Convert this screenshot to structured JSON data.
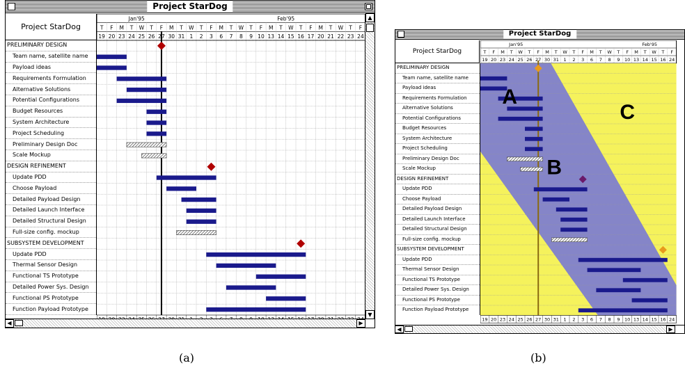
{
  "window_title": "Project StarDog",
  "project_label": "Project StarDog",
  "months": [
    {
      "label": "Jan'95",
      "start": 0,
      "span": 10
    },
    {
      "label": "Feb'95",
      "start": 10,
      "span": 20
    }
  ],
  "weekdays": [
    "T",
    "F",
    "M",
    "T",
    "W",
    "T",
    "F",
    "M",
    "T",
    "W",
    "T",
    "F",
    "M",
    "T",
    "W",
    "T",
    "F",
    "M",
    "T",
    "W",
    "T",
    "F",
    "M",
    "T",
    "W",
    "T",
    "F",
    "M",
    "T",
    "F"
  ],
  "dates": [
    "19",
    "20",
    "23",
    "24",
    "25",
    "26",
    "27",
    "30",
    "31",
    "1",
    "2",
    "3",
    "6",
    "7",
    "8",
    "9",
    "10",
    "13",
    "14",
    "15",
    "16",
    "17",
    "20",
    "21",
    "22",
    "23",
    "24"
  ],
  "dates_b": [
    "19",
    "20",
    "23",
    "24",
    "25",
    "26",
    "27",
    "30",
    "31",
    "1",
    "2",
    "3",
    "6",
    "7",
    "8",
    "9",
    "10",
    "13",
    "14",
    "15",
    "16",
    "24"
  ],
  "rows": [
    {
      "label": "PRELIMINARY DESIGN",
      "kind": "section"
    },
    {
      "label": "Team name, satellite name",
      "kind": "task"
    },
    {
      "label": "Payload ideas",
      "kind": "task"
    },
    {
      "label": "Requirements Formulation",
      "kind": "task"
    },
    {
      "label": "Alternative Solutions",
      "kind": "task"
    },
    {
      "label": "Potential Configurations",
      "kind": "task"
    },
    {
      "label": "Budget Resources",
      "kind": "task"
    },
    {
      "label": "System Architecture",
      "kind": "task"
    },
    {
      "label": "Project Scheduling",
      "kind": "task"
    },
    {
      "label": "Preliminary Design Doc",
      "kind": "task"
    },
    {
      "label": "Scale Mockup",
      "kind": "task"
    },
    {
      "label": "DESIGN REFINEMENT",
      "kind": "section"
    },
    {
      "label": "Update PDD",
      "kind": "task"
    },
    {
      "label": "Choose Payload",
      "kind": "task"
    },
    {
      "label": "Detailed Payload Design",
      "kind": "task"
    },
    {
      "label": "Detailed Launch Interface",
      "kind": "task"
    },
    {
      "label": "Detailed Structural Design",
      "kind": "task"
    },
    {
      "label": "Full-size config. mockup",
      "kind": "task"
    },
    {
      "label": "SUBSYSTEM DEVELOPMENT",
      "kind": "section"
    },
    {
      "label": "Update PDD",
      "kind": "task"
    },
    {
      "label": "Thermal Sensor Design",
      "kind": "task"
    },
    {
      "label": "Functional TS Prototype",
      "kind": "task"
    },
    {
      "label": "Detailed Power Sys. Design",
      "kind": "task"
    },
    {
      "label": "Functional PS Prototype",
      "kind": "task"
    },
    {
      "label": "Function Payload Prototype",
      "kind": "task"
    }
  ],
  "bars": [
    {
      "row": 1,
      "start": 0,
      "end": 3,
      "style": "solid"
    },
    {
      "row": 2,
      "start": 0,
      "end": 3,
      "style": "solid"
    },
    {
      "row": 3,
      "start": 2,
      "end": 7,
      "style": "solid"
    },
    {
      "row": 4,
      "start": 3,
      "end": 7,
      "style": "solid"
    },
    {
      "row": 5,
      "start": 2,
      "end": 7,
      "style": "solid"
    },
    {
      "row": 6,
      "start": 5,
      "end": 7,
      "style": "solid"
    },
    {
      "row": 7,
      "start": 5,
      "end": 7,
      "style": "solid"
    },
    {
      "row": 8,
      "start": 5,
      "end": 7,
      "style": "solid"
    },
    {
      "row": 9,
      "start": 3,
      "end": 7,
      "style": "hatched"
    },
    {
      "row": 10,
      "start": 4.5,
      "end": 7,
      "style": "hatched"
    },
    {
      "row": 12,
      "start": 6,
      "end": 12,
      "style": "solid"
    },
    {
      "row": 13,
      "start": 7,
      "end": 10,
      "style": "solid"
    },
    {
      "row": 14,
      "start": 8.5,
      "end": 12,
      "style": "solid"
    },
    {
      "row": 15,
      "start": 9,
      "end": 12,
      "style": "solid"
    },
    {
      "row": 16,
      "start": 9,
      "end": 12,
      "style": "solid"
    },
    {
      "row": 17,
      "start": 8,
      "end": 12,
      "style": "hatched"
    },
    {
      "row": 19,
      "start": 11,
      "end": 21,
      "style": "solid"
    },
    {
      "row": 20,
      "start": 12,
      "end": 18,
      "style": "solid"
    },
    {
      "row": 21,
      "start": 16,
      "end": 21,
      "style": "solid"
    },
    {
      "row": 22,
      "start": 13,
      "end": 18,
      "style": "solid"
    },
    {
      "row": 23,
      "start": 17,
      "end": 21,
      "style": "solid"
    },
    {
      "row": 24,
      "start": 11,
      "end": 21,
      "style": "solid"
    }
  ],
  "milestones": [
    {
      "row": 0,
      "col": 6.5
    },
    {
      "row": 11,
      "col": 11.5
    },
    {
      "row": 18,
      "col": 20.5
    }
  ],
  "today_col": 6.5,
  "overlay_letters": [
    "A",
    "B",
    "C"
  ],
  "captions": [
    "(a)",
    "(b)"
  ],
  "colors": {
    "bar": "#1a1a8c",
    "milestone": "#b00000",
    "milestone_b": "#e89a1c",
    "milestone_b2": "#6a1a6a",
    "region_yellow": "#f5f25c",
    "region_blue": "#8585c8",
    "today_line": "#000000",
    "today_line_b": "#8a6a10"
  }
}
